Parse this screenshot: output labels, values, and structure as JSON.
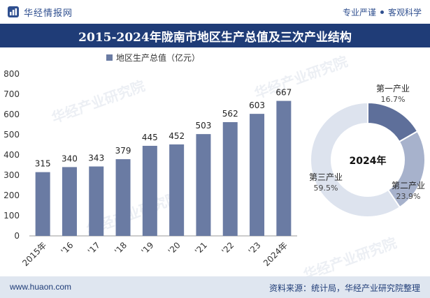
{
  "header": {
    "brand": "华经情报网",
    "slogan_left": "专业严谨",
    "slogan_right": "客观科学"
  },
  "title": "2015-2024年陇南市地区生产总值及三次产业结构",
  "footer": {
    "website": "www.huaon.com",
    "source": "资料来源：统计局，华经产业研究院整理"
  },
  "watermarks": [
    "华经产业研究院",
    "华经产业研究院",
    "华经产业研究院",
    "华经产业研究院"
  ],
  "colors": {
    "bar": "#6a7ba3",
    "primary": "#1f3c77",
    "pie_1": "#5e6f9a",
    "pie_2": "#a7b2cc",
    "pie_3": "#dde3ee"
  },
  "chart_data": [
    {
      "type": "bar",
      "legend": "地区生产总值（亿元）",
      "categories": [
        "2015年",
        "'16",
        "'17",
        "'18",
        "'19",
        "'20",
        "'21",
        "'22",
        "'23",
        "2024年"
      ],
      "values": [
        315,
        340,
        343,
        379,
        445,
        452,
        503,
        562,
        603,
        667
      ],
      "ylim": [
        0,
        800
      ],
      "yticks": [
        0,
        100,
        200,
        300,
        400,
        500,
        600,
        700,
        800
      ],
      "legend_position": "top-left"
    },
    {
      "type": "pie",
      "center_label": "2024年",
      "slices": [
        {
          "name": "第一产业",
          "value": 16.7,
          "label": "16.7%"
        },
        {
          "name": "第二产业",
          "value": 23.9,
          "label": "23.9%"
        },
        {
          "name": "第三产业",
          "value": 59.5,
          "label": "59.5%"
        }
      ]
    }
  ]
}
